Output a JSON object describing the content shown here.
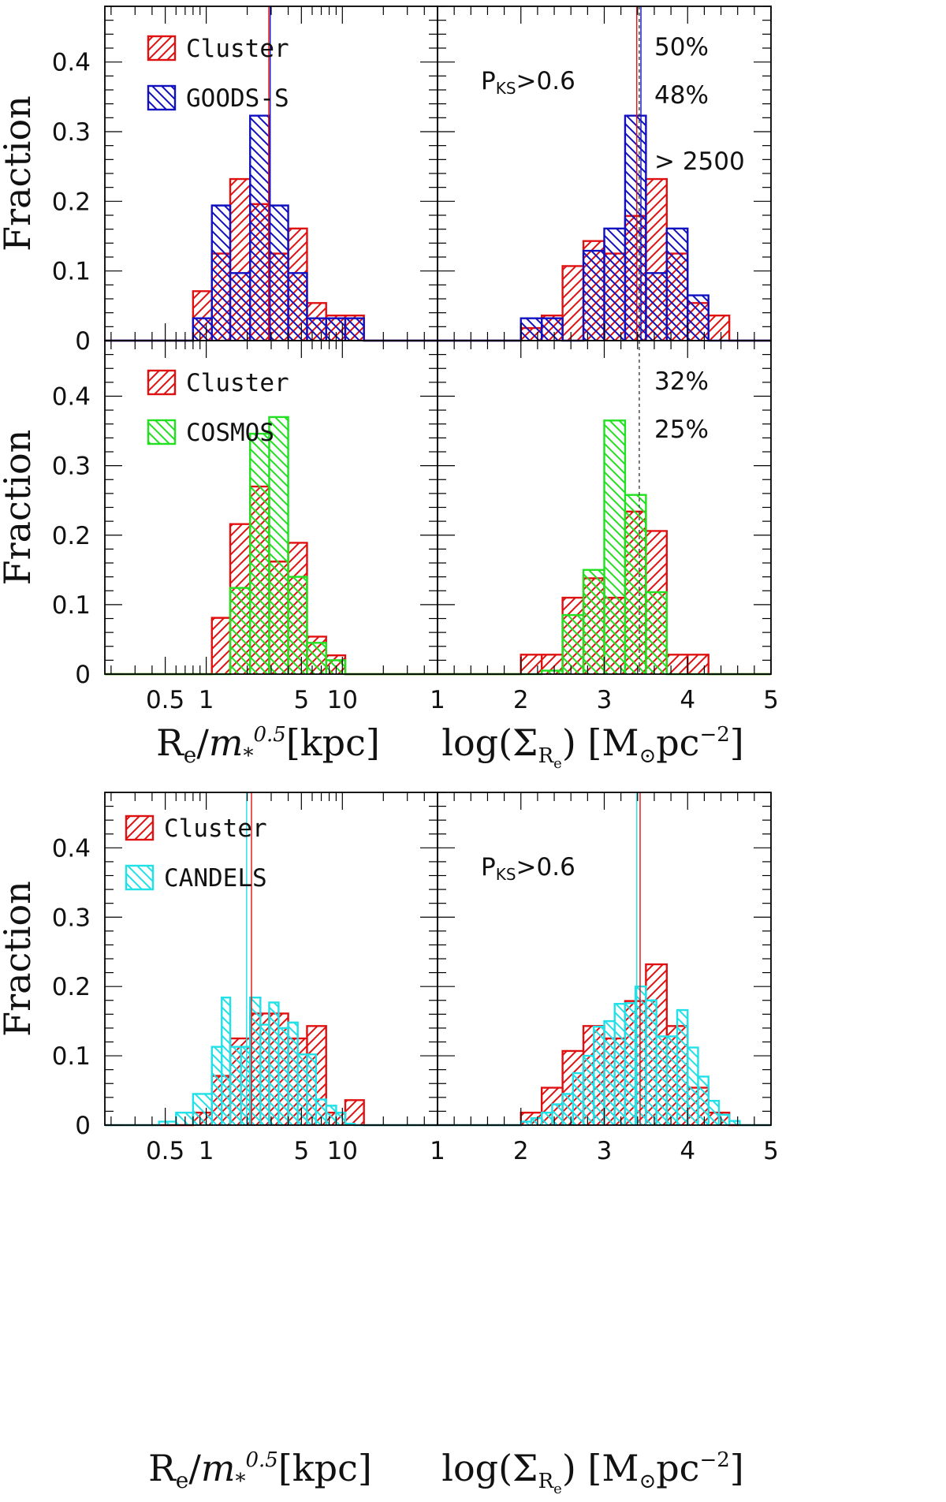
{
  "colors": {
    "cluster": "#e01010",
    "goods": "#1010c0",
    "cosmos": "#20e020",
    "candels": "#20e0e8",
    "frame": "#000000"
  },
  "labels": {
    "fraction": "Fraction",
    "x_left_main": "R",
    "x_left_sub": "e",
    "x_left_slash": "/",
    "x_left_m": "m",
    "x_left_msub": "*",
    "x_left_msup": "0.5",
    "x_left_unit": "[kpc]",
    "x_right_log": "log(Σ",
    "x_right_sub1": "R",
    "x_right_sub2": "e",
    "x_right_close": ")",
    "x_right_unit_open": "[M",
    "x_right_sun": "⊙",
    "x_right_pc": "pc",
    "x_right_exp": "−2",
    "x_right_unit_close": "]"
  },
  "chart_data": [
    {
      "id": "top-left",
      "type": "bar",
      "title": "",
      "xlabel": "Re/m*^0.5 [kpc]",
      "ylabel": "Fraction",
      "xscale": "log",
      "xlim": [
        0.18,
        50
      ],
      "ylim": [
        0,
        0.48
      ],
      "yticks": [
        "0",
        "0.1",
        "0.2",
        "0.3",
        "0.4"
      ],
      "xticks": [],
      "legend": [
        "Cluster",
        "GOODS-S"
      ],
      "annotations": [],
      "vlines": [
        {
          "x": 2.88,
          "series": 0
        },
        {
          "x": 2.95,
          "series": 1
        }
      ],
      "series": [
        {
          "name": "Cluster",
          "color": "cluster",
          "hatch": "fwd",
          "edges": [
            0.8,
            1.1,
            1.5,
            2.1,
            2.9,
            4.0,
            5.5,
            7.6,
            10.5,
            14.4
          ],
          "values": [
            0.071,
            0.125,
            0.232,
            0.196,
            0.125,
            0.161,
            0.054,
            0.036,
            0.036
          ]
        },
        {
          "name": "GOODS-S",
          "color": "goods",
          "hatch": "back",
          "edges": [
            0.8,
            1.1,
            1.5,
            2.1,
            2.9,
            4.0,
            5.5,
            7.6,
            10.5,
            14.4
          ],
          "values": [
            0.032,
            0.194,
            0.097,
            0.323,
            0.194,
            0.097,
            0.032,
            0.032,
            0.032
          ]
        }
      ]
    },
    {
      "id": "top-right",
      "type": "bar",
      "title": "",
      "xlabel": "log(Σ_Re) [M⊙pc^-2]",
      "ylabel": "",
      "xlim": [
        1,
        5
      ],
      "ylim": [
        0,
        0.48
      ],
      "legend": [],
      "annotations": [
        {
          "text": "P",
          "sub": "KS",
          "after": ">0.6",
          "pos": "upper-left"
        },
        {
          "text": "50%",
          "pos": "top"
        },
        {
          "text": "48%",
          "pos": "upper"
        },
        {
          "text": "> 2500",
          "pos": "middle-right"
        }
      ],
      "vlines": [
        {
          "x": 3.39,
          "series": 0
        },
        {
          "x": 3.44,
          "series": 1
        }
      ],
      "dashed_x": 3.42,
      "series": [
        {
          "name": "Cluster",
          "color": "cluster",
          "hatch": "fwd",
          "edges": [
            2.0,
            2.25,
            2.5,
            2.75,
            3.0,
            3.25,
            3.5,
            3.75,
            4.0,
            4.25,
            4.5
          ],
          "values": [
            0.018,
            0.036,
            0.107,
            0.143,
            0.125,
            0.179,
            0.232,
            0.125,
            0.054,
            0.036
          ]
        },
        {
          "name": "GOODS-S",
          "color": "goods",
          "hatch": "back",
          "edges": [
            2.0,
            2.25,
            2.5,
            2.75,
            3.0,
            3.25,
            3.5,
            3.75,
            4.0,
            4.25
          ],
          "values": [
            0.032,
            0.032,
            0.0,
            0.129,
            0.161,
            0.323,
            0.097,
            0.161,
            0.065
          ]
        }
      ]
    },
    {
      "id": "middle-left",
      "type": "bar",
      "xlabel": "Re/m*^0.5 [kpc]",
      "ylabel": "Fraction",
      "xscale": "log",
      "xlim": [
        0.18,
        50
      ],
      "ylim": [
        0,
        0.48
      ],
      "yticks": [
        "0",
        "0.1",
        "0.2",
        "0.3",
        "0.4"
      ],
      "xticks": [
        "0.5",
        "1",
        "5",
        "10"
      ],
      "legend": [
        "Cluster",
        "COSMOS"
      ],
      "annotations": [],
      "vlines": [],
      "series": [
        {
          "name": "Cluster",
          "color": "cluster",
          "hatch": "fwd",
          "edges": [
            1.1,
            1.5,
            2.1,
            2.9,
            4.0,
            5.5,
            7.6,
            10.5,
            14.4
          ],
          "values": [
            0.081,
            0.216,
            0.27,
            0.162,
            0.189,
            0.054,
            0.027,
            0.0
          ]
        },
        {
          "name": "COSMOS",
          "color": "cosmos",
          "hatch": "back",
          "edges": [
            1.5,
            2.1,
            2.9,
            4.0,
            5.5,
            7.6,
            10.5
          ],
          "values": [
            0.124,
            0.346,
            0.37,
            0.14,
            0.045,
            0.02
          ]
        }
      ]
    },
    {
      "id": "middle-right",
      "type": "bar",
      "xlabel": "log(Σ_Re) [M⊙pc^-2]",
      "xlim": [
        1,
        5
      ],
      "ylim": [
        0,
        0.48
      ],
      "xticks": [
        "1",
        "2",
        "3",
        "4",
        "5"
      ],
      "legend": [],
      "annotations": [
        {
          "text": "32%",
          "pos": "top"
        },
        {
          "text": "25%",
          "pos": "upper"
        }
      ],
      "vlines": [],
      "dashed_x": 3.42,
      "series": [
        {
          "name": "Cluster",
          "color": "cluster",
          "hatch": "fwd",
          "edges": [
            2.0,
            2.25,
            2.5,
            2.75,
            3.0,
            3.25,
            3.5,
            3.75,
            4.0,
            4.25
          ],
          "values": [
            0.028,
            0.028,
            0.11,
            0.138,
            0.11,
            0.234,
            0.206,
            0.028,
            0.028
          ]
        },
        {
          "name": "COSMOS",
          "color": "cosmos",
          "hatch": "back",
          "edges": [
            2.25,
            2.5,
            2.75,
            3.0,
            3.25,
            3.5,
            3.75
          ],
          "values": [
            0.005,
            0.085,
            0.15,
            0.365,
            0.258,
            0.118
          ]
        }
      ]
    },
    {
      "id": "bottom-left",
      "type": "bar",
      "xlabel": "Re/m*^0.5 [kpc]",
      "ylabel": "Fraction",
      "xscale": "log",
      "xlim": [
        0.18,
        50
      ],
      "ylim": [
        0,
        0.48
      ],
      "yticks": [
        "0",
        "0.1",
        "0.2",
        "0.3",
        "0.4"
      ],
      "xticks": [
        "0.5",
        "1",
        "5",
        "10"
      ],
      "legend": [
        "Cluster",
        "CANDELS"
      ],
      "annotations": [],
      "vlines": [
        {
          "x": 2.15,
          "series": 0
        },
        {
          "x": 1.98,
          "series": 1
        }
      ],
      "series": [
        {
          "name": "Cluster",
          "color": "cluster",
          "hatch": "fwd",
          "edges": [
            0.6,
            0.8,
            1.1,
            1.5,
            2.1,
            2.9,
            4.0,
            5.5,
            7.6,
            10.5,
            14.4
          ],
          "values": [
            0.0,
            0.018,
            0.071,
            0.125,
            0.161,
            0.161,
            0.125,
            0.143,
            0.018,
            0.036
          ]
        },
        {
          "name": "CANDELS",
          "color": "candels",
          "hatch": "back",
          "edges": [
            0.45,
            0.6,
            0.8,
            1.1,
            1.3,
            1.5,
            1.8,
            2.1,
            2.5,
            2.9,
            3.4,
            4.0,
            4.7,
            5.5,
            6.4,
            7.6,
            9.0,
            10.5,
            12.3
          ],
          "values": [
            0.005,
            0.018,
            0.045,
            0.113,
            0.184,
            0.113,
            0.113,
            0.184,
            0.145,
            0.177,
            0.14,
            0.148,
            0.102,
            0.102,
            0.037,
            0.028,
            0.018,
            0.002
          ]
        }
      ]
    },
    {
      "id": "bottom-right",
      "type": "bar",
      "xlabel": "log(Σ_Re) [M⊙pc^-2]",
      "xlim": [
        1,
        5
      ],
      "ylim": [
        0,
        0.48
      ],
      "xticks": [
        "1",
        "2",
        "3",
        "4",
        "5"
      ],
      "legend": [],
      "annotations": [
        {
          "text": "P",
          "sub": "KS",
          "after": ">0.6",
          "pos": "upper-left"
        }
      ],
      "vlines": [
        {
          "x": 3.39,
          "series": 1
        },
        {
          "x": 3.43,
          "series": 0
        }
      ],
      "series": [
        {
          "name": "Cluster",
          "color": "cluster",
          "hatch": "fwd",
          "edges": [
            2.0,
            2.25,
            2.5,
            2.75,
            3.0,
            3.25,
            3.5,
            3.75,
            4.0,
            4.25,
            4.5
          ],
          "values": [
            0.018,
            0.054,
            0.107,
            0.143,
            0.125,
            0.179,
            0.232,
            0.143,
            0.054,
            0.018
          ]
        },
        {
          "name": "CANDELS",
          "color": "candels",
          "hatch": "back",
          "edges": [
            2.0,
            2.125,
            2.25,
            2.375,
            2.5,
            2.625,
            2.75,
            2.875,
            3.0,
            3.125,
            3.25,
            3.375,
            3.5,
            3.625,
            3.75,
            3.875,
            4.0,
            4.125,
            4.25,
            4.375,
            4.5,
            4.625
          ],
          "values": [
            0.005,
            0.01,
            0.018,
            0.03,
            0.045,
            0.075,
            0.1,
            0.142,
            0.15,
            0.175,
            0.176,
            0.2,
            0.18,
            0.128,
            0.128,
            0.166,
            0.112,
            0.07,
            0.035,
            0.015,
            0.006
          ]
        }
      ]
    }
  ]
}
